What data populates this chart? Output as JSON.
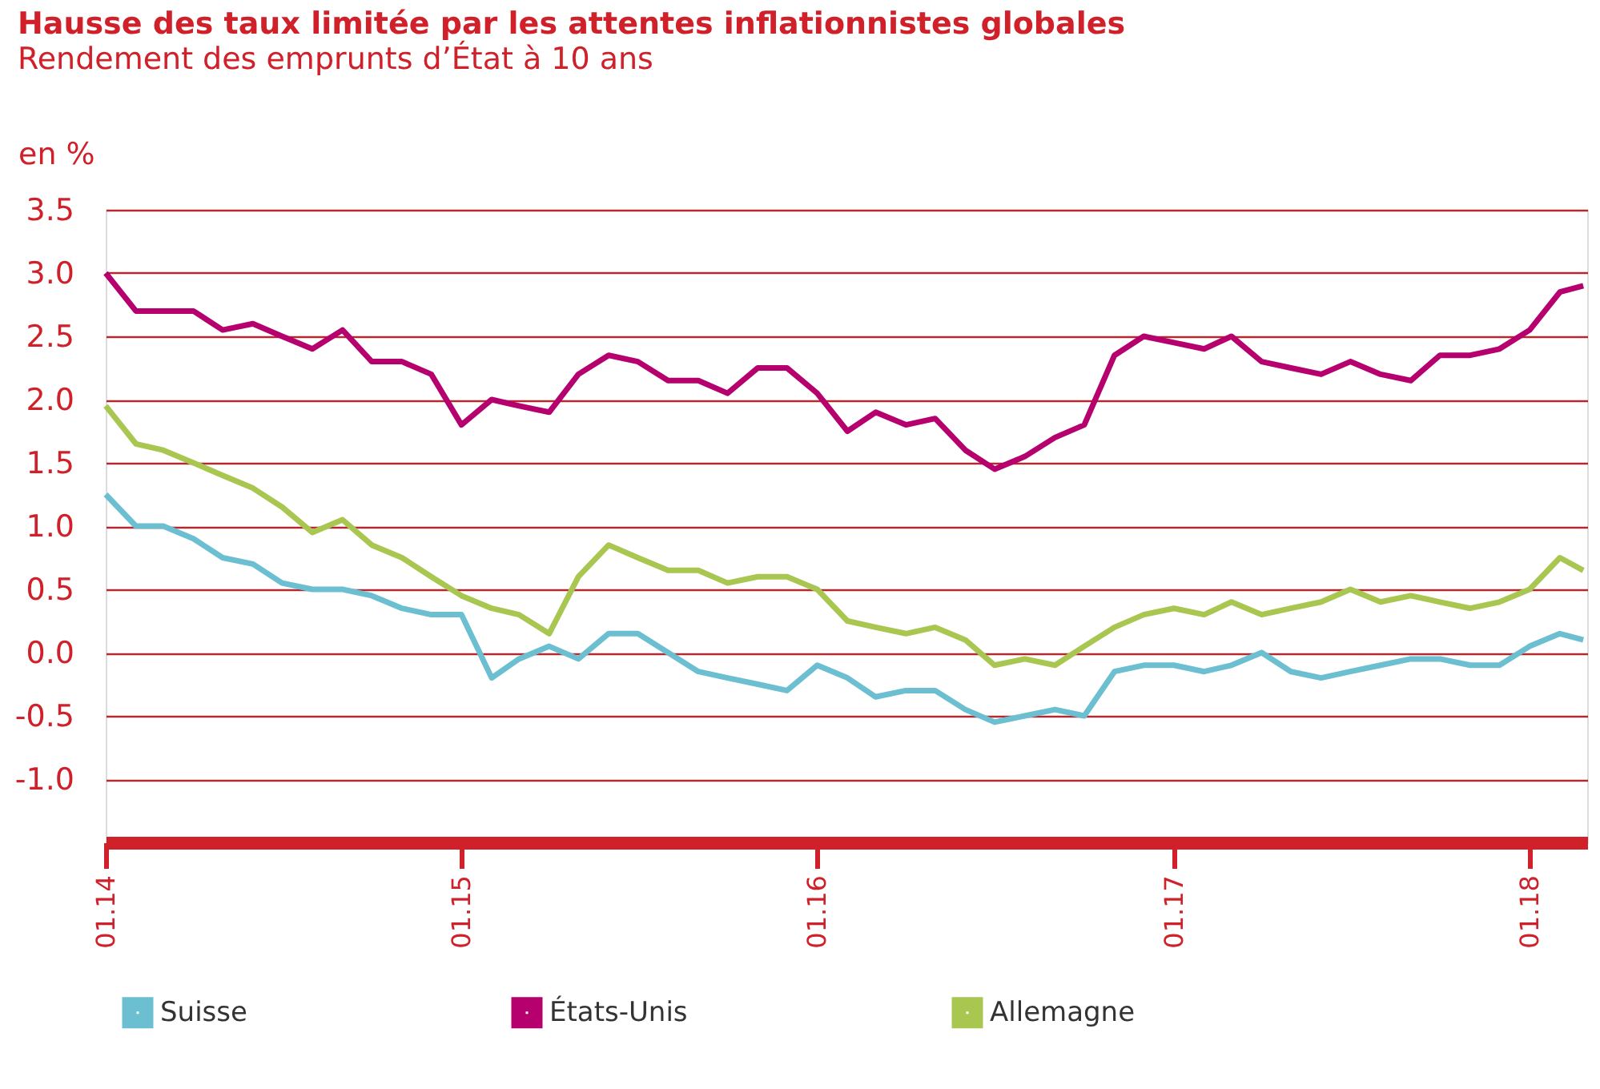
{
  "chart_data": {
    "type": "line",
    "title": "Hausse des taux limitée par les attentes inflationnistes globales",
    "subtitle": "Rendement des emprunts d’État à 10 ans",
    "ylabel": "en %",
    "x": [
      "2014-01-01",
      "2014-02-01",
      "2014-03-01",
      "2014-04-01",
      "2014-05-01",
      "2014-06-01",
      "2014-07-01",
      "2014-08-01",
      "2014-09-01",
      "2014-10-01",
      "2014-11-01",
      "2014-12-01",
      "2015-01-01",
      "2015-02-01",
      "2015-03-01",
      "2015-04-01",
      "2015-05-01",
      "2015-06-01",
      "2015-07-01",
      "2015-08-01",
      "2015-09-01",
      "2015-10-01",
      "2015-11-01",
      "2015-12-01",
      "2016-01-01",
      "2016-02-01",
      "2016-03-01",
      "2016-04-01",
      "2016-05-01",
      "2016-06-01",
      "2016-07-01",
      "2016-08-01",
      "2016-09-01",
      "2016-10-01",
      "2016-11-01",
      "2016-12-01",
      "2017-01-01",
      "2017-02-01",
      "2017-03-01",
      "2017-04-01",
      "2017-05-01",
      "2017-06-01",
      "2017-07-01",
      "2017-08-01",
      "2017-09-01",
      "2017-10-01",
      "2017-11-01",
      "2017-12-01",
      "2018-01-01",
      "2018-02-01",
      "2018-02-25"
    ],
    "series": [
      {
        "name": "Suisse",
        "color": "#6bbfd1",
        "values": [
          1.25,
          1.0,
          1.0,
          0.9,
          0.75,
          0.7,
          0.55,
          0.5,
          0.5,
          0.45,
          0.35,
          0.3,
          0.3,
          -0.2,
          -0.05,
          0.05,
          -0.05,
          0.15,
          0.15,
          0.0,
          -0.15,
          -0.2,
          -0.25,
          -0.3,
          -0.1,
          -0.2,
          -0.35,
          -0.3,
          -0.3,
          -0.45,
          -0.55,
          -0.5,
          -0.45,
          -0.5,
          -0.15,
          -0.1,
          -0.1,
          -0.15,
          -0.1,
          0.0,
          -0.15,
          -0.2,
          -0.15,
          -0.1,
          -0.05,
          -0.05,
          -0.1,
          -0.1,
          0.05,
          0.15,
          0.1
        ]
      },
      {
        "name": "États-Unis",
        "color": "#b5006e",
        "values": [
          3.0,
          2.7,
          2.7,
          2.7,
          2.55,
          2.6,
          2.5,
          2.4,
          2.55,
          2.3,
          2.3,
          2.2,
          1.8,
          2.0,
          1.95,
          1.9,
          2.2,
          2.35,
          2.3,
          2.15,
          2.15,
          2.05,
          2.25,
          2.25,
          2.05,
          1.75,
          1.9,
          1.8,
          1.85,
          1.6,
          1.45,
          1.55,
          1.7,
          1.8,
          2.35,
          2.5,
          2.45,
          2.4,
          2.5,
          2.3,
          2.25,
          2.2,
          2.3,
          2.2,
          2.15,
          2.35,
          2.35,
          2.4,
          2.55,
          2.85,
          2.9
        ]
      },
      {
        "name": "Allemagne",
        "color": "#a8c650",
        "values": [
          1.95,
          1.65,
          1.6,
          1.5,
          1.4,
          1.3,
          1.15,
          0.95,
          1.05,
          0.85,
          0.75,
          0.6,
          0.45,
          0.35,
          0.3,
          0.15,
          0.6,
          0.85,
          0.75,
          0.65,
          0.65,
          0.55,
          0.6,
          0.6,
          0.5,
          0.25,
          0.2,
          0.15,
          0.2,
          0.1,
          -0.1,
          -0.05,
          -0.1,
          0.05,
          0.2,
          0.3,
          0.35,
          0.3,
          0.4,
          0.3,
          0.35,
          0.4,
          0.5,
          0.4,
          0.45,
          0.4,
          0.35,
          0.4,
          0.5,
          0.75,
          0.65
        ]
      }
    ],
    "xlim": [
      "2014-01-01",
      "2018-03-01"
    ],
    "xticks": [
      {
        "value": "2014-01-01",
        "label": "01.14"
      },
      {
        "value": "2015-01-01",
        "label": "01.15"
      },
      {
        "value": "2016-01-01",
        "label": "01.16"
      },
      {
        "value": "2017-01-01",
        "label": "01.17"
      },
      {
        "value": "2018-01-01",
        "label": "01.18"
      }
    ],
    "ylim": [
      -1.5,
      3.5
    ],
    "yticks": [
      {
        "value": -1.0,
        "label": "-1.0"
      },
      {
        "value": -0.5,
        "label": "-0.5"
      },
      {
        "value": 0.0,
        "label": "0.0"
      },
      {
        "value": 0.5,
        "label": "0.5"
      },
      {
        "value": 1.0,
        "label": "1.0"
      },
      {
        "value": 1.5,
        "label": "1.5"
      },
      {
        "value": 2.0,
        "label": "2.0"
      },
      {
        "value": 2.5,
        "label": "2.5"
      },
      {
        "value": 3.0,
        "label": "3.0"
      },
      {
        "value": 3.5,
        "label": "3.5"
      }
    ],
    "grid": "y",
    "legend": "bottom",
    "marker": "none",
    "line_style": "solid"
  }
}
